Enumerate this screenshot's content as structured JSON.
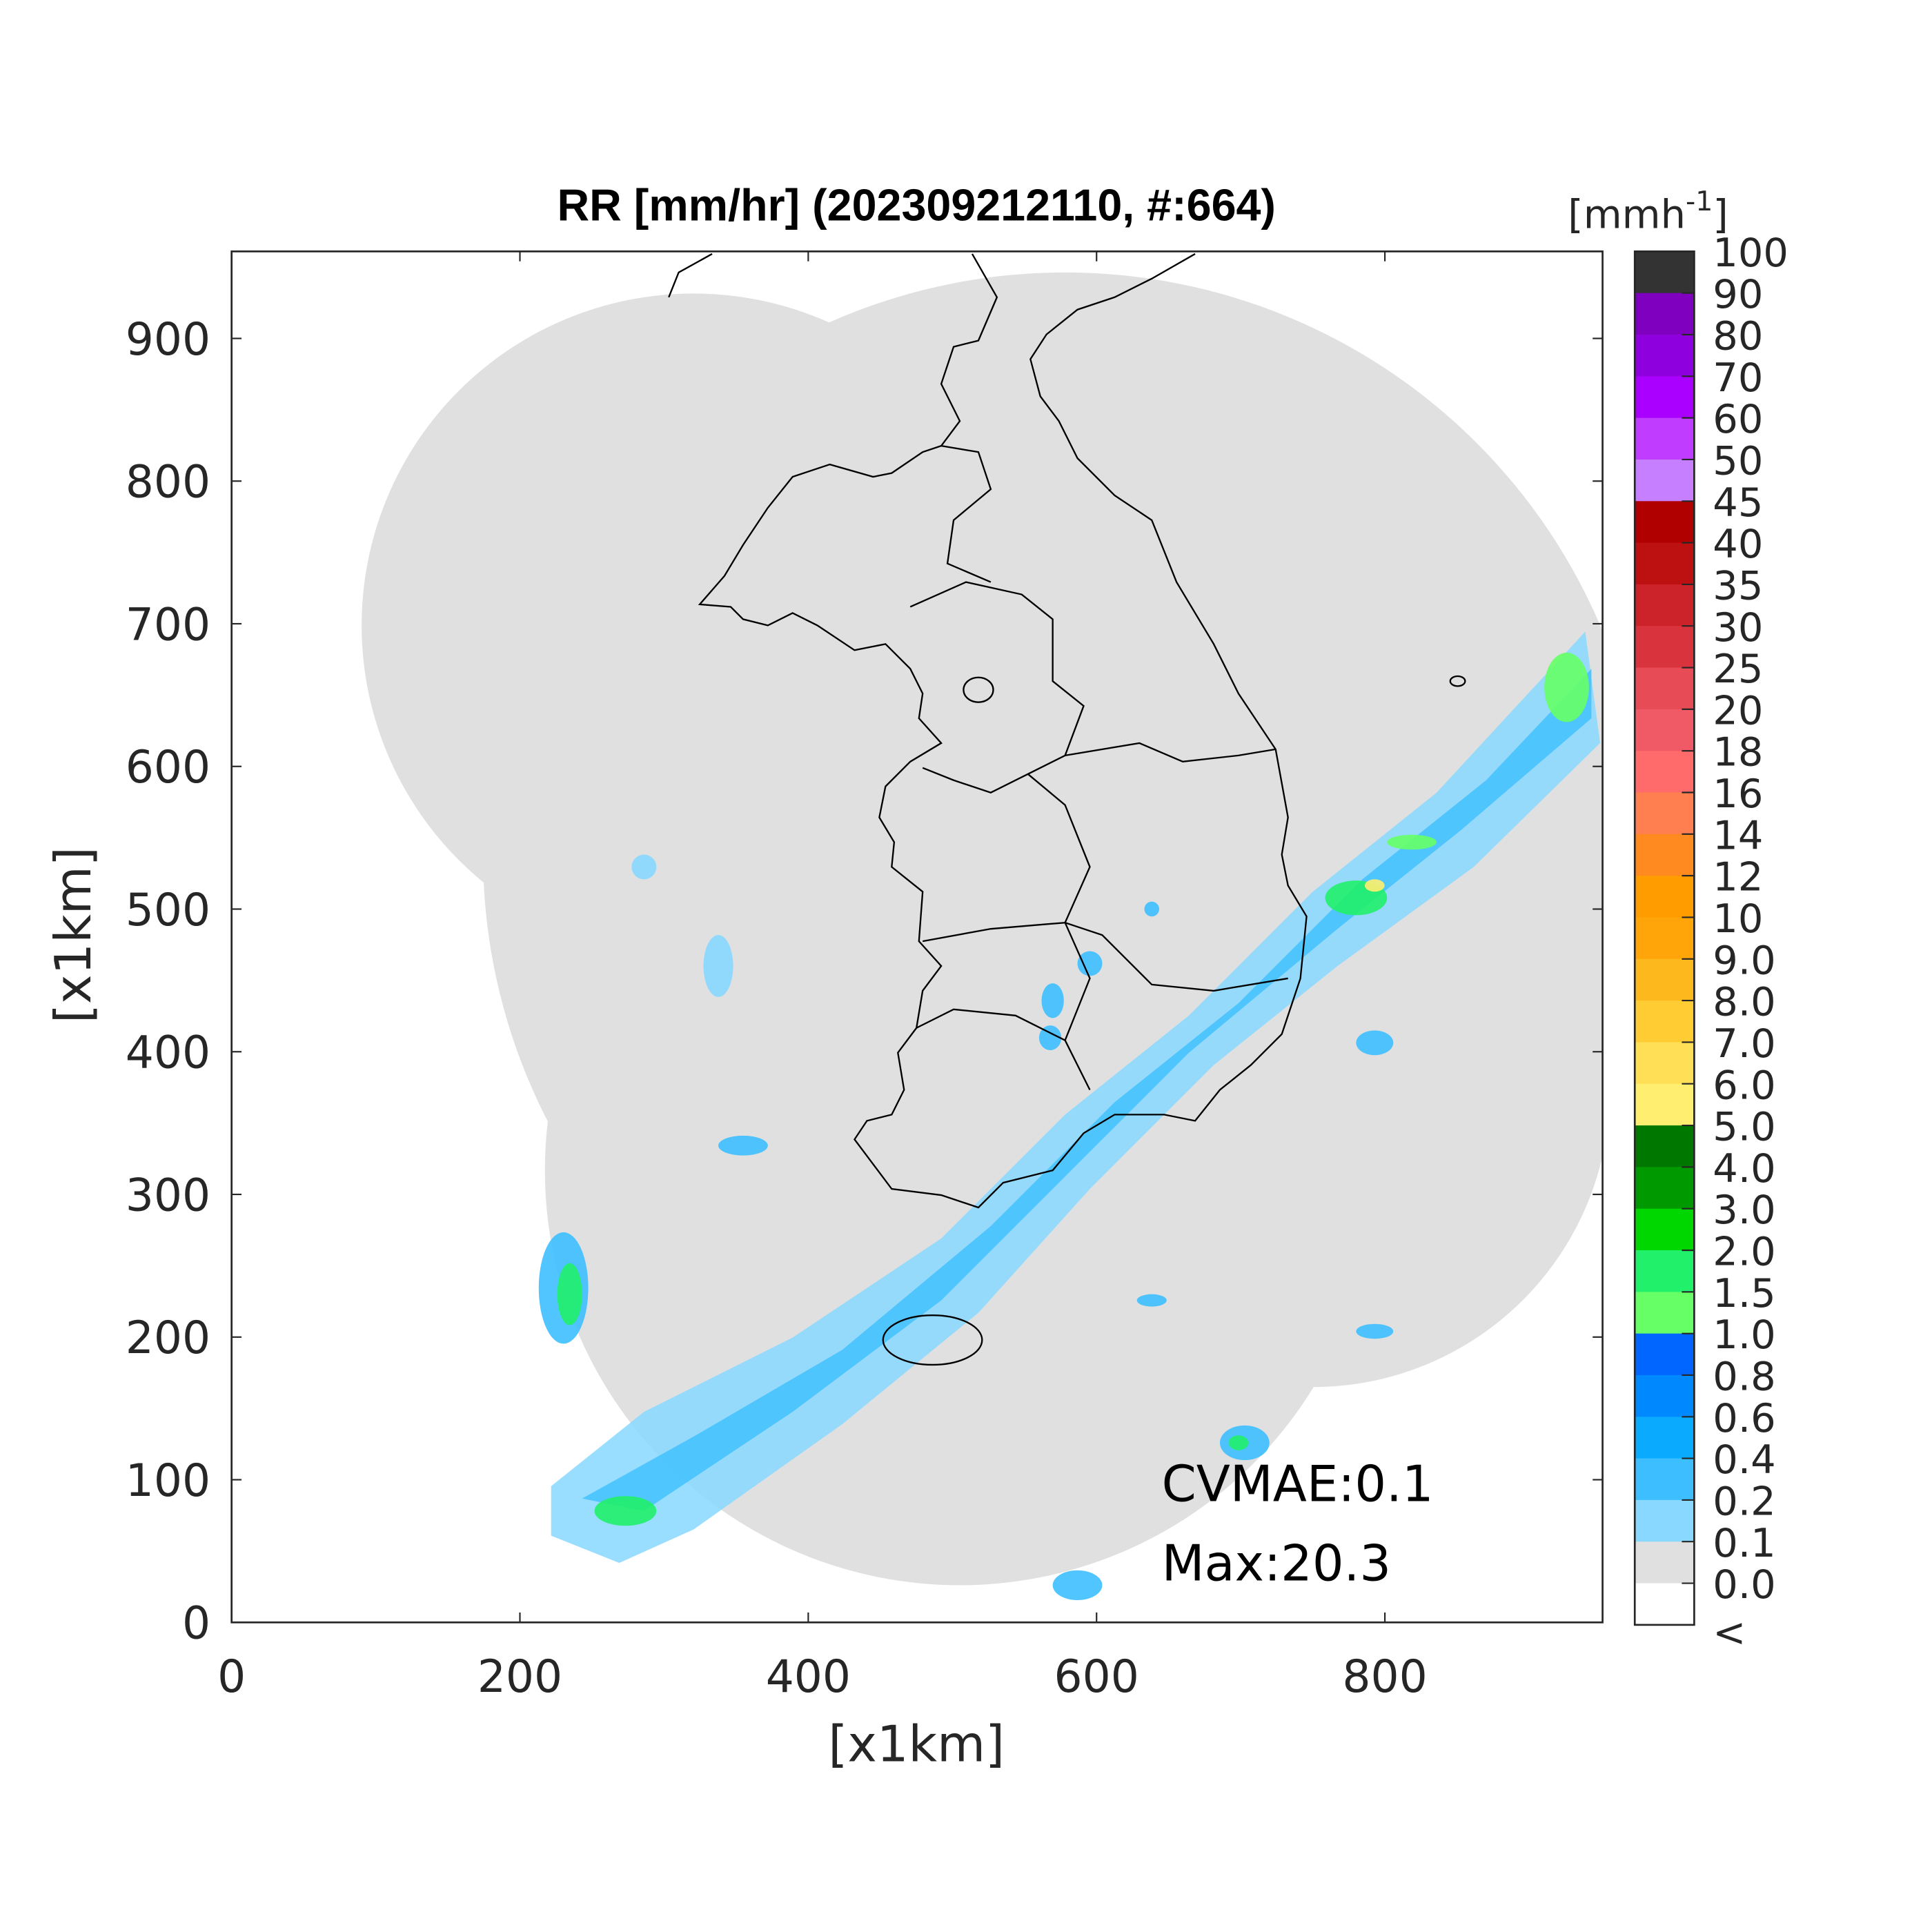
{
  "chart_data": {
    "type": "heatmap",
    "title": "RR [mm/hr] (202309212110, #:664)",
    "xlabel": "[x1km]",
    "ylabel": "[x1km]",
    "xlim": [
      0,
      951
    ],
    "ylim": [
      0,
      961
    ],
    "xticks": [
      0,
      200,
      400,
      600,
      800
    ],
    "yticks": [
      0,
      100,
      200,
      300,
      400,
      500,
      600,
      700,
      800,
      900
    ],
    "grid": false,
    "colorbar": {
      "title": "[mmh",
      "title_sup": "-1",
      "title_end": "]",
      "labels": [
        "100",
        "90",
        "80",
        "70",
        "60",
        "50",
        "45",
        "40",
        "35",
        "30",
        "25",
        "20",
        "18",
        "16",
        "14",
        "12",
        "10",
        "9.0",
        "8.0",
        "7.0",
        "6.0",
        "5.0",
        "4.0",
        "3.0",
        "2.0",
        "1.5",
        "1.0",
        "0.8",
        "0.6",
        "0.4",
        "0.2",
        "0.1",
        "0.0",
        "<"
      ],
      "colors": [
        "#333333",
        "#7f00bf",
        "#8f00df",
        "#aa00ff",
        "#c03cff",
        "#c57fff",
        "#b00000",
        "#bd1111",
        "#cc2229",
        "#d9343e",
        "#e64b56",
        "#f05a66",
        "#ff6a6a",
        "#ff7f50",
        "#ff8a1f",
        "#ff9c00",
        "#ffa50a",
        "#fdb81e",
        "#ffcc33",
        "#ffdf55",
        "#ffee70",
        "#007800",
        "#009900",
        "#00d600",
        "#20f06a",
        "#66ff66",
        "#0066ff",
        "#0088ff",
        "#0aaaff",
        "#3dbfff",
        "#88d8ff",
        "#e0e0e0",
        "#ffffff"
      ]
    },
    "annotations": {
      "cvmae": "CVMAE:0.1",
      "max": "Max:20.3"
    },
    "background_color": "#e0e0e0"
  }
}
